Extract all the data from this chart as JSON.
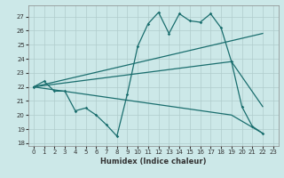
{
  "bg_color": "#cce8e8",
  "grid_color": "#b0cccc",
  "line_color": "#1a6e6e",
  "xlabel": "Humidex (Indice chaleur)",
  "xlim": [
    -0.5,
    23.5
  ],
  "ylim": [
    17.8,
    27.8
  ],
  "yticks": [
    18,
    19,
    20,
    21,
    22,
    23,
    24,
    25,
    26,
    27
  ],
  "xticks": [
    0,
    1,
    2,
    3,
    4,
    5,
    6,
    7,
    8,
    9,
    10,
    11,
    12,
    13,
    14,
    15,
    16,
    17,
    18,
    19,
    20,
    21,
    22,
    23
  ],
  "series_main": {
    "x": [
      0,
      1,
      2,
      3,
      4,
      5,
      6,
      7,
      8,
      9,
      10,
      11,
      12,
      13,
      14,
      15,
      16,
      17,
      18,
      19,
      20,
      21,
      22
    ],
    "y": [
      22.0,
      22.4,
      21.7,
      21.7,
      20.3,
      20.5,
      20.0,
      19.3,
      18.5,
      21.5,
      24.9,
      26.5,
      27.3,
      25.8,
      27.2,
      26.7,
      26.6,
      27.2,
      26.2,
      23.8,
      20.6,
      19.2,
      18.7
    ]
  },
  "line_upper": {
    "x": [
      0,
      22
    ],
    "y": [
      22.0,
      25.8
    ]
  },
  "line_mid": {
    "x": [
      0,
      19,
      22
    ],
    "y": [
      22.0,
      23.8,
      20.6
    ]
  },
  "line_lower": {
    "x": [
      0,
      19,
      22
    ],
    "y": [
      22.0,
      20.0,
      18.7
    ]
  }
}
